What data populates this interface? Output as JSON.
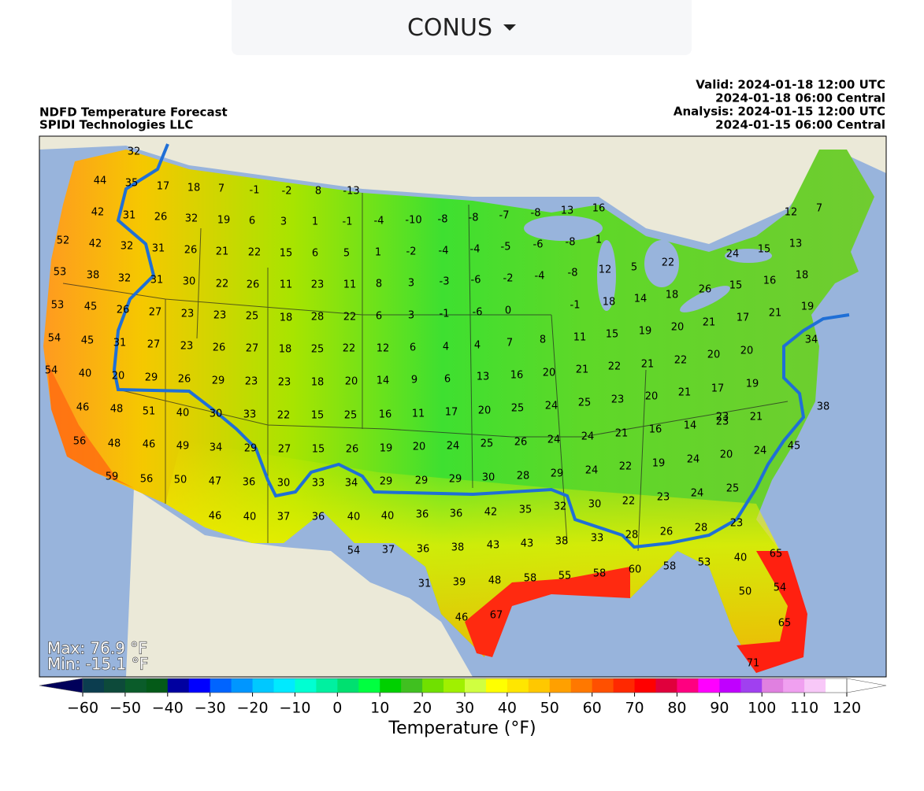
{
  "header": {
    "selector": "CONUS"
  },
  "map": {
    "title": [
      "NDFD Temperature Forecast",
      "SPIDI Technologies LLC"
    ],
    "valid": [
      "Valid: 2024-01-18 12:00 UTC",
      "2024-01-18 06:00 Central",
      "Analysis: 2024-01-15 12:00 UTC",
      "2024-01-15 06:00 Central"
    ],
    "max_label": "Max: 76.9 °F",
    "min_label": "Min: -15.1 °F",
    "station_values": [
      32,
      44,
      35,
      17,
      18,
      7,
      -1,
      -2,
      8,
      -13,
      42,
      31,
      26,
      32,
      19,
      6,
      3,
      1,
      -1,
      -4,
      -10,
      -8,
      -8,
      -7,
      -8,
      13,
      16,
      12,
      7,
      52,
      42,
      32,
      31,
      26,
      21,
      22,
      15,
      6,
      5,
      1,
      -2,
      -4,
      -4,
      -5,
      -6,
      -8,
      1,
      13,
      15,
      24,
      53,
      38,
      32,
      31,
      30,
      22,
      26,
      11,
      23,
      11,
      8,
      3,
      -3,
      -6,
      -2,
      -4,
      -8,
      12,
      5,
      22,
      18,
      53,
      45,
      26,
      27,
      23,
      23,
      25,
      18,
      28,
      22,
      6,
      3,
      -1,
      -6,
      0,
      -1,
      18,
      14,
      18,
      26,
      15,
      16,
      19,
      54,
      45,
      31,
      27,
      23,
      26,
      27,
      18,
      25,
      22,
      12,
      6,
      4,
      4,
      7,
      8,
      11,
      15,
      19,
      20,
      21,
      17,
      21,
      34,
      54,
      40,
      20,
      29,
      26,
      29,
      23,
      23,
      18,
      20,
      14,
      9,
      6,
      13,
      16,
      20,
      21,
      22,
      21,
      22,
      20,
      20,
      19,
      46,
      48,
      51,
      40,
      30,
      33,
      22,
      15,
      25,
      16,
      11,
      17,
      20,
      25,
      24,
      25,
      23,
      20,
      21,
      17,
      23,
      21,
      38,
      56,
      48,
      46,
      49,
      34,
      29,
      27,
      15,
      26,
      19,
      20,
      24,
      25,
      26,
      24,
      24,
      21,
      16,
      14,
      23,
      24,
      45,
      20,
      59,
      56,
      50,
      47,
      36,
      30,
      33,
      34,
      29,
      29,
      29,
      30,
      28,
      29,
      24,
      22,
      19,
      24,
      25,
      46,
      40,
      37,
      36,
      40,
      40,
      36,
      36,
      42,
      35,
      32,
      30,
      22,
      23,
      24,
      54,
      37,
      36,
      38,
      43,
      43,
      38,
      33,
      28,
      26,
      28,
      23,
      65,
      31,
      39,
      48,
      58,
      55,
      58,
      60,
      58,
      53,
      40,
      54,
      50,
      46,
      67,
      65,
      71
    ],
    "colorbar": {
      "label": "Temperature (°F)",
      "range": [
        -60,
        120
      ],
      "ticks": [
        {
          "value": -60,
          "label": "−60"
        },
        {
          "value": -50,
          "label": "−50"
        },
        {
          "value": -40,
          "label": "−40"
        },
        {
          "value": -30,
          "label": "−30"
        },
        {
          "value": -20,
          "label": "−20"
        },
        {
          "value": -10,
          "label": "−10"
        },
        0,
        10,
        20,
        30,
        40,
        50,
        60,
        70,
        80,
        90,
        100,
        110,
        120
      ],
      "colors": [
        "#0b3d4f",
        "#0d4a3a",
        "#0a5c2a",
        "#045a18",
        "#0000a0",
        "#0000ff",
        "#0064ff",
        "#0096ff",
        "#00c8ff",
        "#00eaff",
        "#00ffd2",
        "#00f0a0",
        "#00e070",
        "#00ff40",
        "#00d000",
        "#40c020",
        "#70e000",
        "#a0f000",
        "#d0ff40",
        "#ffff00",
        "#ffe600",
        "#ffc800",
        "#ffa000",
        "#ff7800",
        "#ff5000",
        "#ff2800",
        "#ff0000",
        "#e0003c",
        "#ff0080",
        "#ff00ff",
        "#c000ff",
        "#a040f0",
        "#e080e0",
        "#f0a0f0",
        "#f8c8f8",
        "#ffffff"
      ],
      "under_color": "#00005a",
      "over_color": "#ffffff"
    }
  }
}
